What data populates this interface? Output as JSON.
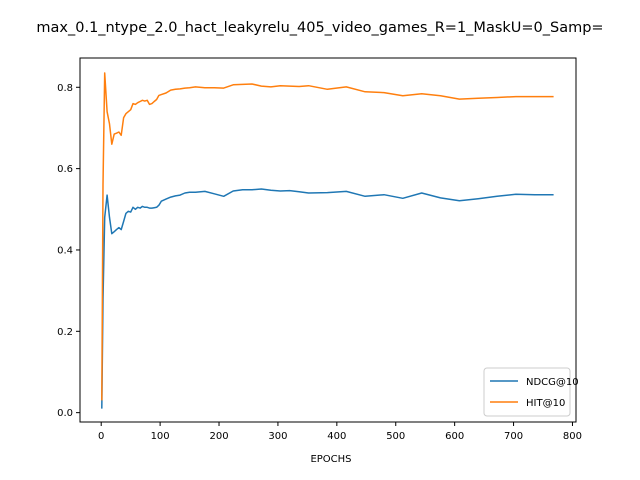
{
  "chart_data": {
    "type": "line",
    "title": "max_0.1_ntype_2.0_hact_leakyrelu_405_video_games_R=1_MaskU=0_Samp=",
    "xlabel": "EPOCHS",
    "ylabel": "",
    "xlim": [
      -36,
      806
    ],
    "ylim": [
      -0.023,
      0.872
    ],
    "xticks": [
      0,
      100,
      200,
      300,
      400,
      500,
      600,
      700,
      800
    ],
    "yticks": [
      0.0,
      0.2,
      0.4,
      0.6,
      0.8
    ],
    "xtick_labels": [
      "0",
      "100",
      "200",
      "300",
      "400",
      "500",
      "600",
      "700",
      "800"
    ],
    "ytick_labels": [
      "0.0",
      "0.2",
      "0.4",
      "0.6",
      "0.8"
    ],
    "grid": false,
    "legend_position": "lower-right",
    "series": [
      {
        "name": "NDCG@10",
        "color": "#1f77b4",
        "x": [
          1,
          3,
          6,
          10,
          14,
          18,
          22,
          26,
          30,
          34,
          38,
          42,
          46,
          50,
          54,
          58,
          62,
          66,
          70,
          74,
          78,
          82,
          86,
          90,
          94,
          98,
          102,
          110,
          118,
          126,
          134,
          142,
          150,
          160,
          176,
          192,
          208,
          224,
          240,
          256,
          272,
          288,
          304,
          320,
          336,
          352,
          384,
          416,
          448,
          480,
          512,
          544,
          576,
          608,
          640,
          672,
          704,
          736,
          768
        ],
        "y": [
          0.01,
          0.28,
          0.48,
          0.535,
          0.48,
          0.44,
          0.445,
          0.45,
          0.455,
          0.45,
          0.47,
          0.49,
          0.495,
          0.493,
          0.505,
          0.5,
          0.505,
          0.503,
          0.507,
          0.505,
          0.505,
          0.503,
          0.503,
          0.504,
          0.505,
          0.51,
          0.52,
          0.525,
          0.53,
          0.533,
          0.535,
          0.54,
          0.542,
          0.542,
          0.544,
          0.538,
          0.532,
          0.545,
          0.548,
          0.548,
          0.55,
          0.547,
          0.545,
          0.546,
          0.543,
          0.54,
          0.541,
          0.544,
          0.532,
          0.536,
          0.527,
          0.54,
          0.528,
          0.521,
          0.526,
          0.532,
          0.537,
          0.536,
          0.536
        ]
      },
      {
        "name": "HIT@10",
        "color": "#ff7f0e",
        "x": [
          1,
          3,
          6,
          10,
          14,
          18,
          22,
          26,
          30,
          34,
          38,
          42,
          46,
          50,
          54,
          58,
          62,
          66,
          70,
          74,
          78,
          82,
          86,
          90,
          94,
          98,
          102,
          110,
          118,
          126,
          134,
          142,
          150,
          160,
          176,
          192,
          208,
          224,
          240,
          256,
          272,
          288,
          304,
          320,
          336,
          352,
          384,
          416,
          448,
          480,
          512,
          544,
          576,
          608,
          640,
          672,
          704,
          736,
          768
        ],
        "y": [
          0.03,
          0.56,
          0.835,
          0.74,
          0.71,
          0.66,
          0.685,
          0.687,
          0.69,
          0.682,
          0.725,
          0.735,
          0.74,
          0.745,
          0.76,
          0.758,
          0.762,
          0.765,
          0.768,
          0.766,
          0.768,
          0.758,
          0.76,
          0.765,
          0.77,
          0.78,
          0.782,
          0.786,
          0.793,
          0.795,
          0.796,
          0.798,
          0.799,
          0.801,
          0.799,
          0.799,
          0.798,
          0.806,
          0.807,
          0.808,
          0.803,
          0.801,
          0.804,
          0.803,
          0.802,
          0.804,
          0.795,
          0.801,
          0.789,
          0.787,
          0.779,
          0.784,
          0.779,
          0.771,
          0.773,
          0.775,
          0.777,
          0.777,
          0.777
        ]
      }
    ]
  }
}
